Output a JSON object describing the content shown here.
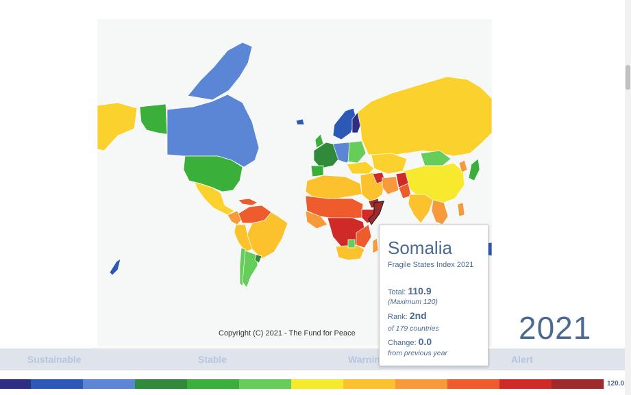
{
  "copyright": "Copyright (C) 2021 - The Fund for Peace",
  "year": "2021",
  "categories": [
    {
      "label": "Sustainable"
    },
    {
      "label": "Stable"
    },
    {
      "label": "Warning"
    },
    {
      "label": "Alert"
    }
  ],
  "scale": {
    "max_label": "120.0",
    "colors": [
      "#2e2e82",
      "#2b59b5",
      "#5b86d6",
      "#2f8a3a",
      "#3ab03a",
      "#66cc5a",
      "#f7ea2e",
      "#fbc22d",
      "#f79a3c",
      "#ee5b2c",
      "#d02a28",
      "#9d2b2b"
    ]
  },
  "tooltip": {
    "country": "Somalia",
    "subtitle": "Fragile States Index 2021",
    "total_label": "Total:",
    "total_value": "110.9",
    "total_note": "(Maximum 120)",
    "rank_label": "Rank:",
    "rank_value": "2nd",
    "rank_note": "of 179 countries",
    "change_label": "Change:",
    "change_value": "0.0",
    "change_note": "from previous year"
  }
}
